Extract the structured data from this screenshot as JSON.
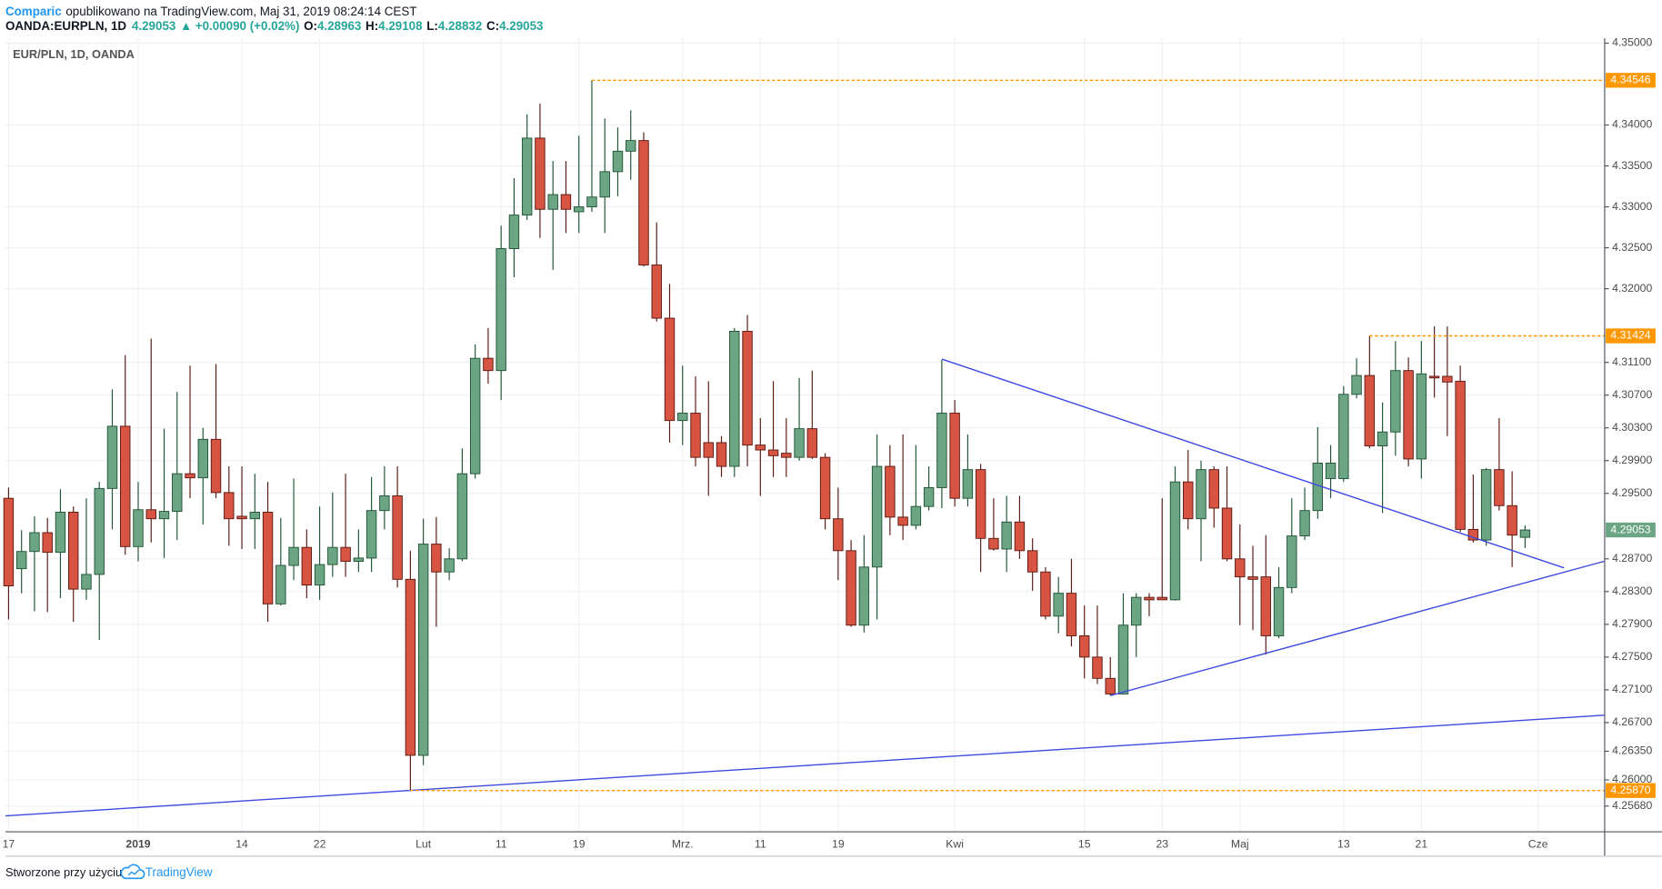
{
  "header": {
    "author": "Comparic",
    "published": "opublikowano na TradingView.com, Maj 31, 2019 08:24:14 CEST",
    "symbol": "OANDA:EURPLN, 1D",
    "arrow": "▲",
    "change": "+0.00090 (+0.02%)",
    "ohlc_labels": [
      "O:",
      "H:",
      "L:",
      "C:"
    ]
  },
  "footer": {
    "text": "Stworzone przy użyciu",
    "brand": "TradingView"
  },
  "chart_data": {
    "type": "candlestick",
    "title": "EUR/PLN, 1D, OANDA",
    "categories": [
      "17",
      null,
      null,
      null,
      null,
      null,
      null,
      null,
      null,
      null,
      "2019",
      null,
      null,
      null,
      null,
      null,
      null,
      null,
      "14",
      null,
      null,
      null,
      null,
      null,
      "22",
      null,
      null,
      null,
      null,
      null,
      null,
      null,
      "Lut",
      null,
      null,
      null,
      null,
      null,
      "11",
      null,
      null,
      null,
      null,
      null,
      "19",
      null,
      null,
      null,
      null,
      null,
      null,
      null,
      "Mrz.",
      null,
      null,
      null,
      null,
      null,
      "11",
      null,
      null,
      null,
      null,
      null,
      "19",
      null,
      null,
      null,
      null,
      null,
      null,
      null,
      null,
      "Kwi",
      null,
      null,
      null,
      null,
      null,
      null,
      null,
      null,
      null,
      "15",
      null,
      null,
      null,
      null,
      null,
      "23",
      null,
      null,
      null,
      null,
      null,
      "Maj",
      null,
      null,
      null,
      null,
      null,
      null,
      null,
      "13",
      null,
      null,
      null,
      null,
      null,
      "21",
      null,
      null,
      null,
      null,
      null,
      null,
      null,
      null,
      "Cze"
    ],
    "open": [
      4.2944,
      4.2858,
      4.2879,
      4.2902,
      4.2878,
      4.2927,
      4.2833,
      4.2851,
      4.2956,
      4.3032,
      4.2885,
      4.293,
      4.2919,
      4.2928,
      4.2974,
      4.2969,
      4.3016,
      4.2951,
      4.2922,
      4.2919,
      4.2927,
      4.2815,
      4.2862,
      4.2884,
      4.2838,
      4.2863,
      4.2884,
      4.2867,
      4.2871,
      4.2929,
      4.2947,
      4.2845,
      4.263,
      4.2888,
      4.2854,
      4.287,
      4.2974,
      4.3115,
      4.31,
      4.3249,
      4.329,
      4.3384,
      4.3297,
      4.3315,
      4.3294,
      4.33,
      4.3312,
      4.3343,
      4.3368,
      4.3381,
      4.3229,
      4.3164,
      4.3039,
      4.3048,
      4.3012,
      4.3012,
      4.2983,
      4.3148,
      4.3009,
      4.3003,
      4.2999,
      4.2994,
      4.3029,
      4.2994,
      4.2919,
      4.288,
      4.2789,
      4.286,
      4.2983,
      4.2921,
      4.2911,
      4.2934,
      4.2957,
      4.3048,
      4.2944,
      4.2979,
      4.2895,
      4.2882,
      4.2915,
      4.288,
      4.2854,
      4.28,
      4.2828,
      4.2776,
      4.275,
      4.2724,
      4.2705,
      4.2789,
      4.2823,
      4.2823,
      4.282,
      4.2964,
      4.2919,
      4.2979,
      4.2932,
      4.287,
      4.2848,
      4.2848,
      4.2776,
      4.2835,
      4.2898,
      4.2929,
      4.2968,
      4.2968,
      4.3071,
      4.3094,
      4.3008,
      4.3025,
      4.31,
      4.2992,
      4.3093,
      4.3093,
      4.3087,
      4.2906,
      4.2893,
      4.2979,
      4.2935,
      4.28963,
      null
    ],
    "high": [
      4.2957,
      4.2905,
      4.2922,
      4.292,
      4.2955,
      4.2934,
      4.2944,
      4.2964,
      4.3077,
      4.3119,
      4.2964,
      4.3139,
      4.3029,
      4.3074,
      4.3106,
      4.303,
      4.3108,
      4.2983,
      4.2983,
      4.2974,
      4.2964,
      4.292,
      4.2968,
      4.2906,
      4.2934,
      4.2951,
      4.2974,
      4.2906,
      4.297,
      4.2983,
      4.2983,
      4.288,
      4.2919,
      4.2921,
      4.2883,
      4.3005,
      4.3132,
      4.3152,
      4.3277,
      4.3335,
      4.3413,
      4.3426,
      4.3356,
      4.3356,
      4.3387,
      4.34546,
      4.3408,
      4.3397,
      4.3418,
      4.3391,
      4.3281,
      4.3206,
      4.3106,
      4.3093,
      4.3087,
      4.302,
      4.3152,
      4.3168,
      4.3042,
      4.3087,
      4.3042,
      4.3091,
      4.31,
      4.2999,
      4.2957,
      4.2893,
      4.2899,
      4.3022,
      4.3009,
      4.3022,
      4.3009,
      4.2983,
      4.3113,
      4.3064,
      4.3022,
      4.2986,
      4.2944,
      4.2947,
      4.2947,
      4.2895,
      4.286,
      4.2848,
      4.287,
      4.2813,
      4.2813,
      4.275,
      4.2828,
      4.2828,
      4.2828,
      4.2944,
      4.2983,
      4.3003,
      4.299,
      4.2983,
      4.2983,
      4.2912,
      4.2886,
      4.2899,
      4.286,
      4.2944,
      4.2957,
      4.3031,
      4.3009,
      4.3081,
      4.3115,
      4.31424,
      4.3061,
      4.3136,
      4.3116,
      4.3136,
      4.3154,
      4.3154,
      4.3106,
      4.2973,
      4.2981,
      4.3042,
      4.2977,
      4.29108,
      null
    ],
    "low": [
      4.2796,
      4.2828,
      4.2806,
      4.2805,
      4.2822,
      4.2793,
      4.282,
      4.2771,
      4.2906,
      4.2875,
      4.2867,
      4.289,
      4.2871,
      4.2893,
      4.2944,
      4.2912,
      4.2944,
      4.2886,
      4.2882,
      4.2882,
      4.2793,
      4.2813,
      4.2844,
      4.2822,
      4.282,
      4.2848,
      4.2848,
      4.2854,
      4.2854,
      4.2906,
      4.2835,
      4.2587,
      4.2618,
      4.2787,
      4.2844,
      4.2867,
      4.2968,
      4.3084,
      4.3064,
      4.3214,
      4.3284,
      4.3262,
      4.3223,
      4.3268,
      4.3268,
      4.3294,
      4.3268,
      4.3313,
      4.3333,
      4.3227,
      4.316,
      4.3012,
      4.3009,
      4.2983,
      4.2947,
      4.297,
      4.297,
      4.2983,
      4.2947,
      4.297,
      4.297,
      4.299,
      4.2992,
      4.2906,
      4.2844,
      4.2787,
      4.278,
      4.2796,
      4.2899,
      4.2893,
      4.2906,
      4.2929,
      4.2932,
      4.2934,
      4.2934,
      4.2854,
      4.288,
      4.2854,
      4.287,
      4.2831,
      4.2796,
      4.2779,
      4.2763,
      4.2724,
      4.2717,
      4.2703,
      4.2704,
      4.275,
      4.28,
      4.282,
      4.2819,
      4.2906,
      4.2867,
      4.2908,
      4.2867,
      4.2789,
      4.2783,
      4.2753,
      4.2773,
      4.2828,
      4.2893,
      4.2919,
      4.2944,
      4.2964,
      4.3066,
      4.3005,
      4.2926,
      4.2996,
      4.2983,
      4.2968,
      4.3067,
      4.302,
      4.2903,
      4.289,
      4.2886,
      4.2929,
      4.286,
      4.28832,
      null
    ],
    "close": [
      4.2837,
      4.2879,
      4.2902,
      4.2878,
      4.2927,
      4.2833,
      4.2851,
      4.2956,
      4.3032,
      4.2885,
      4.293,
      4.2919,
      4.2928,
      4.2974,
      4.2969,
      4.3016,
      4.2951,
      4.2919,
      4.2919,
      4.2927,
      4.2815,
      4.2862,
      4.2884,
      4.2838,
      4.2863,
      4.2884,
      4.2867,
      4.2871,
      4.2929,
      4.2947,
      4.2845,
      4.263,
      4.2888,
      4.2854,
      4.287,
      4.2974,
      4.3115,
      4.31,
      4.3249,
      4.329,
      4.3384,
      4.3297,
      4.3315,
      4.3297,
      4.33,
      4.3312,
      4.3343,
      4.3368,
      4.3381,
      4.3229,
      4.3164,
      4.3039,
      4.3048,
      4.2994,
      4.2994,
      4.2983,
      4.3148,
      4.3009,
      4.3003,
      4.2996,
      4.2994,
      4.3029,
      4.2994,
      4.2919,
      4.288,
      4.2789,
      4.286,
      4.2983,
      4.2921,
      4.2911,
      4.2934,
      4.2957,
      4.3048,
      4.2944,
      4.2979,
      4.2895,
      4.2882,
      4.2915,
      4.288,
      4.2854,
      4.28,
      4.2828,
      4.2776,
      4.275,
      4.2724,
      4.2705,
      4.2789,
      4.2823,
      4.282,
      4.282,
      4.2964,
      4.2919,
      4.2979,
      4.2932,
      4.287,
      4.2848,
      4.2845,
      4.2776,
      4.2835,
      4.2898,
      4.2929,
      4.2987,
      4.2987,
      4.3071,
      4.3094,
      4.3008,
      4.3025,
      4.31,
      4.2992,
      4.3096,
      4.3091,
      4.3086,
      4.2906,
      4.2893,
      4.2979,
      4.2935,
      4.2899,
      4.29053,
      null
    ],
    "up_color": "#6ba583",
    "down_color": "#d75442",
    "up_border": "#225437",
    "down_border": "#5b1a13",
    "ylim": [
      4.25366,
      4.35061
    ],
    "yticks": [
      {
        "value": 4.35,
        "label": "4.35000"
      },
      {
        "value": 4.34,
        "label": "4.34000"
      },
      {
        "value": 4.335,
        "label": "4.33500"
      },
      {
        "value": 4.33,
        "label": "4.33000"
      },
      {
        "value": 4.325,
        "label": "4.32500"
      },
      {
        "value": 4.32,
        "label": "4.32000"
      },
      {
        "value": 4.311,
        "label": "4.31100"
      },
      {
        "value": 4.307,
        "label": "4.30700"
      },
      {
        "value": 4.303,
        "label": "4.30300"
      },
      {
        "value": 4.299,
        "label": "4.29900"
      },
      {
        "value": 4.295,
        "label": "4.29500"
      },
      {
        "value": 4.287,
        "label": "4.28700"
      },
      {
        "value": 4.283,
        "label": "4.28300"
      },
      {
        "value": 4.279,
        "label": "4.27900"
      },
      {
        "value": 4.275,
        "label": "4.27500"
      },
      {
        "value": 4.271,
        "label": "4.27100"
      },
      {
        "value": 4.267,
        "label": "4.26700"
      },
      {
        "value": 4.2635,
        "label": "4.26350"
      },
      {
        "value": 4.26,
        "label": "4.26000"
      },
      {
        "value": 4.2568,
        "label": "4.25680"
      }
    ],
    "grid": true,
    "grid_color": "#eef0f4",
    "price_lines": [
      4.34546,
      4.31424,
      {
        "value": 4.2587,
        "label": "4.25870"
      }
    ],
    "price_line_color": "#ff9800",
    "trendline_color": "#3f4ae0",
    "trendlines": [
      {
        "x": [
          72,
          120
        ],
        "y": [
          4.3114,
          4.2859
        ]
      },
      {
        "x": [
          85,
          123.1
        ],
        "y": [
          4.2703,
          4.2867
        ]
      },
      {
        "x": [
          -0.25,
          123.1
        ],
        "y": [
          4.2556,
          4.2679
        ]
      }
    ]
  }
}
